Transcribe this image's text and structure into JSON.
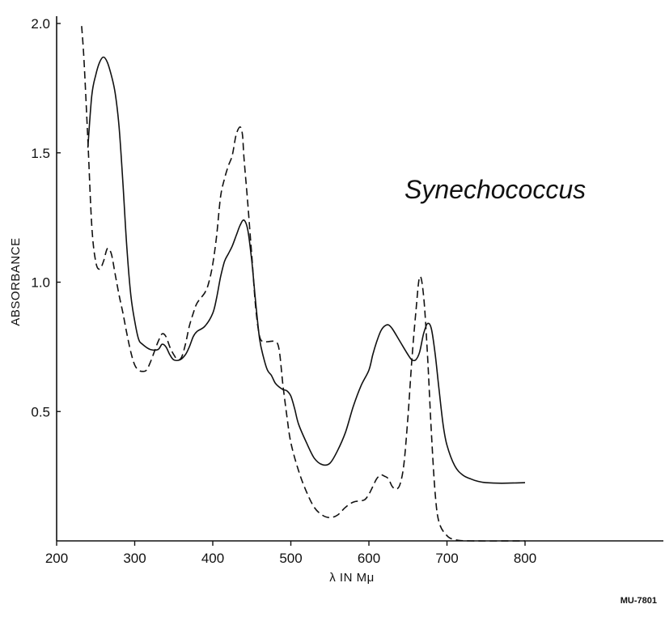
{
  "chart_data": {
    "type": "line",
    "title": "",
    "xlabel": "λ IN Mμ",
    "ylabel": "ABSORBANCE",
    "xlim": [
      200,
      820
    ],
    "ylim": [
      0,
      2.0
    ],
    "x_ticks": [
      200,
      300,
      400,
      500,
      600,
      700,
      800
    ],
    "y_ticks": [
      0.5,
      1.0,
      1.5,
      2.0
    ],
    "x_tick_labels": [
      "200",
      "300",
      "400",
      "500",
      "600",
      "700",
      "800"
    ],
    "y_tick_labels": [
      "0.5",
      "1.0",
      "1.5",
      "2.0"
    ],
    "annotation": "Synechococcus",
    "figure_id": "MU-7801",
    "legend": "none",
    "grid": false,
    "series": [
      {
        "style": "solid",
        "points": [
          [
            240,
            1.52
          ],
          [
            245,
            1.72
          ],
          [
            250,
            1.8
          ],
          [
            255,
            1.85
          ],
          [
            260,
            1.87
          ],
          [
            265,
            1.85
          ],
          [
            270,
            1.8
          ],
          [
            275,
            1.73
          ],
          [
            280,
            1.6
          ],
          [
            285,
            1.38
          ],
          [
            290,
            1.13
          ],
          [
            295,
            0.95
          ],
          [
            300,
            0.85
          ],
          [
            305,
            0.78
          ],
          [
            310,
            0.76
          ],
          [
            320,
            0.74
          ],
          [
            330,
            0.74
          ],
          [
            335,
            0.76
          ],
          [
            340,
            0.75
          ],
          [
            345,
            0.72
          ],
          [
            350,
            0.7
          ],
          [
            358,
            0.7
          ],
          [
            365,
            0.72
          ],
          [
            370,
            0.75
          ],
          [
            375,
            0.79
          ],
          [
            380,
            0.81
          ],
          [
            390,
            0.83
          ],
          [
            400,
            0.88
          ],
          [
            405,
            0.94
          ],
          [
            410,
            1.02
          ],
          [
            415,
            1.08
          ],
          [
            420,
            1.11
          ],
          [
            425,
            1.14
          ],
          [
            430,
            1.18
          ],
          [
            435,
            1.22
          ],
          [
            440,
            1.24
          ],
          [
            445,
            1.2
          ],
          [
            450,
            1.08
          ],
          [
            455,
            0.92
          ],
          [
            460,
            0.78
          ],
          [
            465,
            0.71
          ],
          [
            470,
            0.66
          ],
          [
            475,
            0.64
          ],
          [
            480,
            0.61
          ],
          [
            485,
            0.595
          ],
          [
            490,
            0.585
          ],
          [
            495,
            0.58
          ],
          [
            500,
            0.56
          ],
          [
            505,
            0.51
          ],
          [
            510,
            0.45
          ],
          [
            520,
            0.38
          ],
          [
            530,
            0.32
          ],
          [
            540,
            0.295
          ],
          [
            550,
            0.3
          ],
          [
            560,
            0.35
          ],
          [
            570,
            0.42
          ],
          [
            580,
            0.52
          ],
          [
            590,
            0.6
          ],
          [
            600,
            0.66
          ],
          [
            605,
            0.72
          ],
          [
            610,
            0.77
          ],
          [
            615,
            0.81
          ],
          [
            620,
            0.83
          ],
          [
            625,
            0.835
          ],
          [
            630,
            0.82
          ],
          [
            640,
            0.77
          ],
          [
            650,
            0.72
          ],
          [
            655,
            0.7
          ],
          [
            660,
            0.7
          ],
          [
            665,
            0.73
          ],
          [
            670,
            0.8
          ],
          [
            675,
            0.84
          ],
          [
            680,
            0.82
          ],
          [
            685,
            0.72
          ],
          [
            690,
            0.58
          ],
          [
            695,
            0.45
          ],
          [
            700,
            0.37
          ],
          [
            710,
            0.29
          ],
          [
            720,
            0.255
          ],
          [
            730,
            0.24
          ],
          [
            740,
            0.23
          ],
          [
            750,
            0.225
          ],
          [
            770,
            0.223
          ],
          [
            800,
            0.225
          ]
        ]
      },
      {
        "style": "dashed",
        "points": [
          [
            232,
            1.99
          ],
          [
            235,
            1.86
          ],
          [
            240,
            1.55
          ],
          [
            245,
            1.22
          ],
          [
            250,
            1.08
          ],
          [
            255,
            1.05
          ],
          [
            260,
            1.08
          ],
          [
            265,
            1.13
          ],
          [
            270,
            1.11
          ],
          [
            275,
            1.03
          ],
          [
            280,
            0.95
          ],
          [
            285,
            0.88
          ],
          [
            290,
            0.8
          ],
          [
            295,
            0.73
          ],
          [
            300,
            0.68
          ],
          [
            305,
            0.66
          ],
          [
            310,
            0.655
          ],
          [
            315,
            0.66
          ],
          [
            320,
            0.69
          ],
          [
            325,
            0.73
          ],
          [
            330,
            0.77
          ],
          [
            335,
            0.8
          ],
          [
            340,
            0.79
          ],
          [
            345,
            0.75
          ],
          [
            350,
            0.72
          ],
          [
            355,
            0.7
          ],
          [
            360,
            0.71
          ],
          [
            365,
            0.76
          ],
          [
            370,
            0.83
          ],
          [
            375,
            0.88
          ],
          [
            380,
            0.92
          ],
          [
            390,
            0.96
          ],
          [
            395,
            1.0
          ],
          [
            400,
            1.07
          ],
          [
            405,
            1.18
          ],
          [
            410,
            1.33
          ],
          [
            415,
            1.4
          ],
          [
            420,
            1.45
          ],
          [
            425,
            1.49
          ],
          [
            430,
            1.57
          ],
          [
            435,
            1.6
          ],
          [
            438,
            1.57
          ],
          [
            440,
            1.48
          ],
          [
            445,
            1.3
          ],
          [
            450,
            1.1
          ],
          [
            455,
            0.9
          ],
          [
            460,
            0.79
          ],
          [
            465,
            0.77
          ],
          [
            470,
            0.77
          ],
          [
            480,
            0.77
          ],
          [
            485,
            0.74
          ],
          [
            490,
            0.6
          ],
          [
            495,
            0.48
          ],
          [
            500,
            0.38
          ],
          [
            510,
            0.27
          ],
          [
            520,
            0.19
          ],
          [
            530,
            0.13
          ],
          [
            540,
            0.1
          ],
          [
            550,
            0.09
          ],
          [
            560,
            0.1
          ],
          [
            570,
            0.13
          ],
          [
            580,
            0.15
          ],
          [
            590,
            0.155
          ],
          [
            595,
            0.16
          ],
          [
            600,
            0.18
          ],
          [
            605,
            0.21
          ],
          [
            610,
            0.24
          ],
          [
            615,
            0.255
          ],
          [
            620,
            0.25
          ],
          [
            625,
            0.24
          ],
          [
            630,
            0.21
          ],
          [
            635,
            0.2
          ],
          [
            640,
            0.22
          ],
          [
            645,
            0.3
          ],
          [
            650,
            0.48
          ],
          [
            655,
            0.7
          ],
          [
            660,
            0.88
          ],
          [
            665,
            1.02
          ],
          [
            670,
            0.95
          ],
          [
            675,
            0.72
          ],
          [
            680,
            0.42
          ],
          [
            685,
            0.18
          ],
          [
            690,
            0.07
          ],
          [
            700,
            0.02
          ],
          [
            710,
            0.005
          ],
          [
            730,
            0.0
          ],
          [
            800,
            0.0
          ]
        ]
      }
    ]
  }
}
